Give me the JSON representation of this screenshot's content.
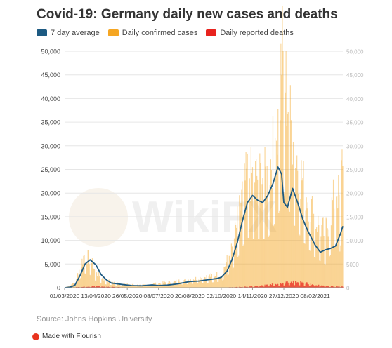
{
  "title": "Covid-19: Germany daily new cases and deaths",
  "legend": [
    {
      "label": "7 day average",
      "color": "#1d5a82"
    },
    {
      "label": "Daily confirmed cases",
      "color": "#f5a623"
    },
    {
      "label": "Daily reported deaths",
      "color": "#e8231e"
    }
  ],
  "source": "Source: Johns Hopkins University",
  "flourish": {
    "label": "Made with Flourish",
    "icon": "flourish-logo-icon"
  },
  "watermark": {
    "text": "WikiFX"
  },
  "chart_data": {
    "type": "bar",
    "title": "Covid-19: Germany daily new cases and deaths",
    "xlabel": "",
    "ylabel": "",
    "ylim": [
      0,
      50000
    ],
    "y_ticks_left": [
      "0",
      "5,000",
      "10,000",
      "15,000",
      "20,000",
      "25,000",
      "30,000",
      "35,000",
      "40,000",
      "45,000",
      "50,000"
    ],
    "y_ticks_right": [
      "0",
      "5000",
      "10,000",
      "15,000",
      "20,000",
      "25,000",
      "30,000",
      "35,000",
      "40,000",
      "45,000",
      "50,000"
    ],
    "x_ticks": [
      "01/03/2020",
      "13/04/2020",
      "26/05/2020",
      "08/07/2020",
      "20/08/2020",
      "02/10/2020",
      "14/11/2020",
      "27/12/2020",
      "08/02/2021"
    ],
    "x_range": [
      "01/03/2020",
      "18/03/2021"
    ],
    "grid": true,
    "legend_position": "top-left",
    "series": [
      {
        "name": "7 day average",
        "type": "line",
        "color": "#1d5a82",
        "points": [
          [
            "01/03/2020",
            0
          ],
          [
            "08/03/2020",
            100
          ],
          [
            "15/03/2020",
            500
          ],
          [
            "22/03/2020",
            2500
          ],
          [
            "29/03/2020",
            5000
          ],
          [
            "05/04/2020",
            5900
          ],
          [
            "13/04/2020",
            4800
          ],
          [
            "20/04/2020",
            2800
          ],
          [
            "27/04/2020",
            1700
          ],
          [
            "04/05/2020",
            1000
          ],
          [
            "18/05/2020",
            700
          ],
          [
            "01/06/2020",
            450
          ],
          [
            "15/06/2020",
            400
          ],
          [
            "29/06/2020",
            600
          ],
          [
            "08/07/2020",
            450
          ],
          [
            "20/07/2020",
            550
          ],
          [
            "03/08/2020",
            800
          ],
          [
            "20/08/2020",
            1300
          ],
          [
            "01/09/2020",
            1400
          ],
          [
            "15/09/2020",
            1700
          ],
          [
            "25/09/2020",
            1900
          ],
          [
            "02/10/2020",
            2200
          ],
          [
            "10/10/2020",
            3500
          ],
          [
            "17/10/2020",
            6000
          ],
          [
            "24/10/2020",
            9500
          ],
          [
            "31/10/2020",
            14000
          ],
          [
            "07/11/2020",
            18000
          ],
          [
            "14/11/2020",
            19500
          ],
          [
            "21/11/2020",
            18500
          ],
          [
            "28/11/2020",
            18000
          ],
          [
            "05/12/2020",
            19500
          ],
          [
            "12/12/2020",
            22000
          ],
          [
            "19/12/2020",
            25500
          ],
          [
            "24/12/2020",
            24000
          ],
          [
            "27/12/2020",
            18000
          ],
          [
            "01/01/2021",
            17000
          ],
          [
            "08/01/2021",
            21000
          ],
          [
            "15/01/2021",
            18000
          ],
          [
            "22/01/2021",
            14500
          ],
          [
            "29/01/2021",
            12000
          ],
          [
            "08/02/2021",
            9000
          ],
          [
            "15/02/2021",
            7500
          ],
          [
            "22/02/2021",
            8000
          ],
          [
            "01/03/2021",
            8300
          ],
          [
            "08/03/2021",
            8800
          ],
          [
            "15/03/2021",
            11500
          ],
          [
            "18/03/2021",
            13000
          ]
        ]
      },
      {
        "name": "Daily confirmed cases",
        "type": "bar",
        "color": "#f5a623",
        "points": [
          [
            "01/03/2020",
            0
          ],
          [
            "15/03/2020",
            1000
          ],
          [
            "28/03/2020",
            6800
          ],
          [
            "05/04/2020",
            6000
          ],
          [
            "13/04/2020",
            3000
          ],
          [
            "27/04/2020",
            1500
          ],
          [
            "18/05/2020",
            800
          ],
          [
            "15/06/2020",
            500
          ],
          [
            "20/08/2020",
            1700
          ],
          [
            "02/10/2020",
            2800
          ],
          [
            "17/10/2020",
            7800
          ],
          [
            "31/10/2020",
            19000
          ],
          [
            "07/11/2020",
            23500
          ],
          [
            "14/11/2020",
            23000
          ],
          [
            "05/12/2020",
            23000
          ],
          [
            "18/12/2020",
            33000
          ],
          [
            "21/12/2020",
            36000
          ],
          [
            "24/12/2020",
            49000
          ],
          [
            "27/12/2020",
            45000
          ],
          [
            "08/01/2021",
            31000
          ],
          [
            "22/01/2021",
            22000
          ],
          [
            "08/02/2021",
            14000
          ],
          [
            "22/02/2021",
            11000
          ],
          [
            "10/03/2021",
            21000
          ],
          [
            "14/03/2021",
            17000
          ],
          [
            "18/03/2021",
            28500
          ]
        ]
      },
      {
        "name": "Daily reported deaths",
        "type": "bar",
        "color": "#e8231e",
        "points": [
          [
            "01/03/2020",
            0
          ],
          [
            "13/04/2020",
            300
          ],
          [
            "27/04/2020",
            200
          ],
          [
            "01/06/2020",
            30
          ],
          [
            "02/10/2020",
            20
          ],
          [
            "14/11/2020",
            250
          ],
          [
            "18/12/2020",
            800
          ],
          [
            "30/12/2020",
            1100
          ],
          [
            "14/01/2021",
            1200
          ],
          [
            "08/02/2021",
            600
          ],
          [
            "01/03/2021",
            300
          ],
          [
            "18/03/2021",
            250
          ]
        ]
      }
    ]
  }
}
